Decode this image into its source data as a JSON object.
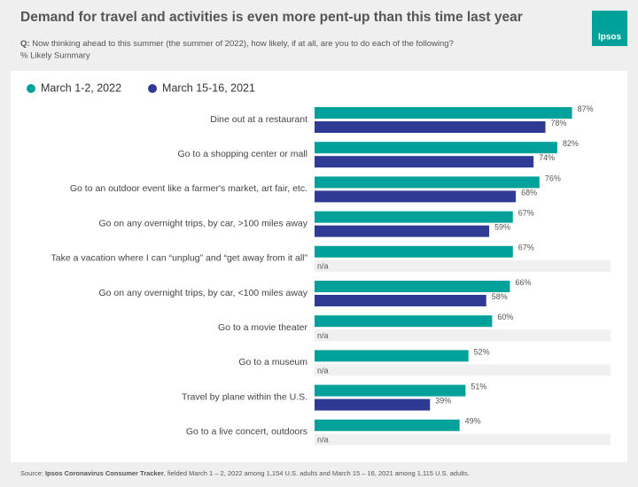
{
  "chart_data": {
    "type": "hbar",
    "title": "Demand for travel and activities is even more pent-up than this time last year",
    "question_label": "Q:",
    "question": "Now thinking ahead to this summer (the summer of 2022), how likely, if at all, are you to do each of the following?",
    "subtitle": "% Likely Summary",
    "logo": "Ipsos",
    "source_label": "Source:",
    "source_name": "Ipsos Coronavirus Consumer Tracker",
    "source_text": ", fielded March 1 – 2, 2022 among 1,154 U.S. adults and March 15 – 16, 2021 among 1,115 U.S. adults.",
    "categories": [
      "Dine out at a restaurant",
      "Go to a shopping center or mall",
      "Go to an outdoor event like a farmer's market, art fair, etc.",
      "Go on any overnight trips, by car, >100 miles away",
      "Take a vacation where I can “unplug” and “get away from it all”",
      "Go on any overnight trips, by car, <100 miles away",
      "Go to a movie theater",
      "Go to a museum",
      "Travel by plane within the U.S.",
      "Go to a live concert, outdoors"
    ],
    "series": [
      {
        "name": "March 1-2, 2022",
        "color": "#00a19a",
        "values": [
          87,
          82,
          76,
          67,
          67,
          66,
          60,
          52,
          51,
          49
        ],
        "value_labels": [
          "87%",
          "82%",
          "76%",
          "67%",
          "67%",
          "66%",
          "60%",
          "52%",
          "51%",
          "49%"
        ]
      },
      {
        "name": "March 15-16, 2021",
        "color": "#2e3a94",
        "values": [
          78,
          74,
          68,
          59,
          null,
          58,
          null,
          null,
          39,
          null
        ],
        "value_labels": [
          "78%",
          "74%",
          "68%",
          "59%",
          "n/a",
          "58%",
          "n/a",
          "n/a",
          "39%",
          "n/a"
        ]
      }
    ],
    "xlim": [
      0,
      100
    ]
  }
}
